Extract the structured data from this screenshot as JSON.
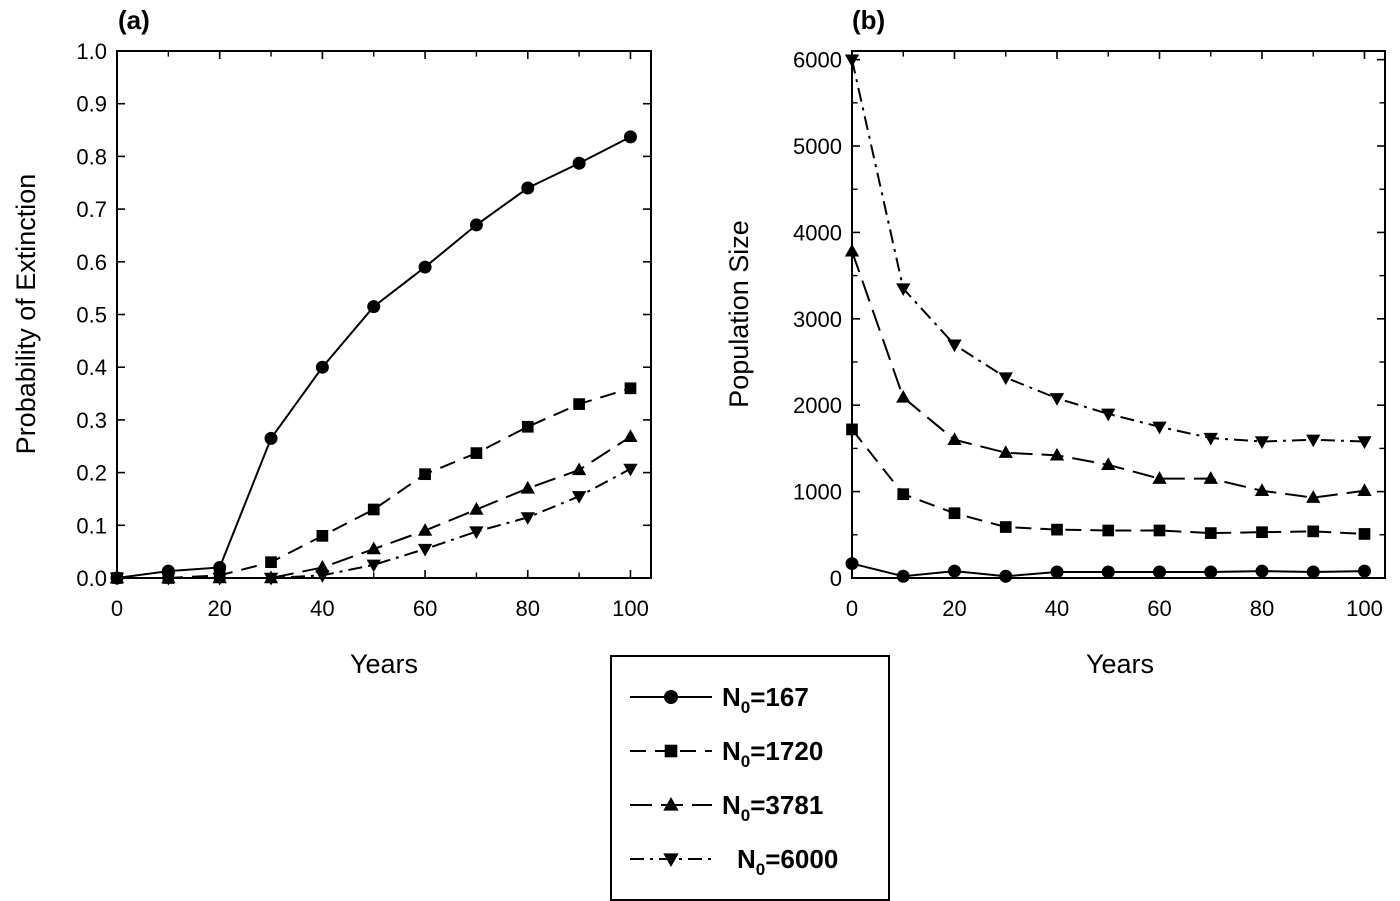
{
  "chart_data": [
    {
      "type": "line",
      "panel_label": "(a)",
      "xlabel": "Years",
      "ylabel": "Probability of Extinction",
      "xlim": [
        0,
        104
      ],
      "ylim": [
        0,
        1.0
      ],
      "x": [
        0,
        10,
        20,
        30,
        40,
        50,
        60,
        70,
        80,
        90,
        100
      ],
      "xticks": [
        0,
        20,
        40,
        60,
        80,
        100
      ],
      "xtick_labels": [
        "0",
        "20",
        "40",
        "60",
        "80",
        "100"
      ],
      "yticks": [
        0,
        0.1,
        0.2,
        0.3,
        0.4,
        0.5,
        0.6,
        0.7,
        0.8,
        0.9,
        1.0
      ],
      "ytick_labels": [
        "0.0",
        "0.1",
        "0.2",
        "0.3",
        "0.4",
        "0.5",
        "0.6",
        "0.7",
        "0.8",
        "0.9",
        "1.0"
      ],
      "grid": false,
      "series": [
        {
          "values": [
            0.0,
            0.013,
            0.02,
            0.265,
            0.4,
            0.515,
            0.59,
            0.67,
            0.74,
            0.787,
            0.837
          ]
        },
        {
          "values": [
            0.0,
            0.0,
            0.005,
            0.03,
            0.08,
            0.13,
            0.197,
            0.237,
            0.287,
            0.33,
            0.36
          ]
        },
        {
          "values": [
            0.0,
            0.0,
            0.0,
            0.0,
            0.02,
            0.055,
            0.09,
            0.13,
            0.17,
            0.205,
            0.268
          ]
        },
        {
          "values": [
            0.0,
            0.0,
            0.0,
            0.0,
            0.005,
            0.025,
            0.055,
            0.088,
            0.115,
            0.155,
            0.207
          ]
        }
      ]
    },
    {
      "type": "line",
      "panel_label": "(b)",
      "xlabel": "Years",
      "ylabel": "Population Size",
      "xlim": [
        0,
        104
      ],
      "ylim": [
        0,
        6100
      ],
      "x": [
        0,
        10,
        20,
        30,
        40,
        50,
        60,
        70,
        80,
        90,
        100
      ],
      "xticks": [
        0,
        20,
        40,
        60,
        80,
        100
      ],
      "xtick_labels": [
        "0",
        "20",
        "40",
        "60",
        "80",
        "100"
      ],
      "yticks": [
        0,
        1000,
        2000,
        3000,
        4000,
        5000,
        6000
      ],
      "ytick_labels": [
        "0",
        "1000",
        "2000",
        "3000",
        "4000",
        "5000",
        "6000"
      ],
      "grid": false,
      "series": [
        {
          "values": [
            167,
            20,
            80,
            20,
            70,
            70,
            70,
            70,
            80,
            70,
            80
          ]
        },
        {
          "values": [
            1720,
            970,
            750,
            590,
            560,
            550,
            550,
            520,
            530,
            540,
            510
          ]
        },
        {
          "values": [
            3781,
            2090,
            1600,
            1450,
            1420,
            1310,
            1150,
            1150,
            1010,
            930,
            1010
          ]
        },
        {
          "values": [
            6000,
            3350,
            2700,
            2320,
            2080,
            1900,
            1750,
            1620,
            1580,
            1600,
            1580
          ]
        }
      ]
    }
  ],
  "legend": {
    "placement": "bottom-center",
    "entries": [
      {
        "prefix": "N",
        "subscript": "0",
        "suffix": "=167",
        "marker": "circle",
        "dash": "solid"
      },
      {
        "prefix": "N",
        "subscript": "0",
        "suffix": "=1720",
        "marker": "square",
        "dash": "dashed"
      },
      {
        "prefix": "N",
        "subscript": "0",
        "suffix": "=3781",
        "marker": "triangle-up",
        "dash": "long-dashed"
      },
      {
        "prefix": "N",
        "subscript": "0",
        "suffix": "=6000",
        "marker": "triangle-down",
        "dash": "dash-dot"
      }
    ]
  },
  "colors": {
    "line": "#000000",
    "background": "#ffffff"
  }
}
